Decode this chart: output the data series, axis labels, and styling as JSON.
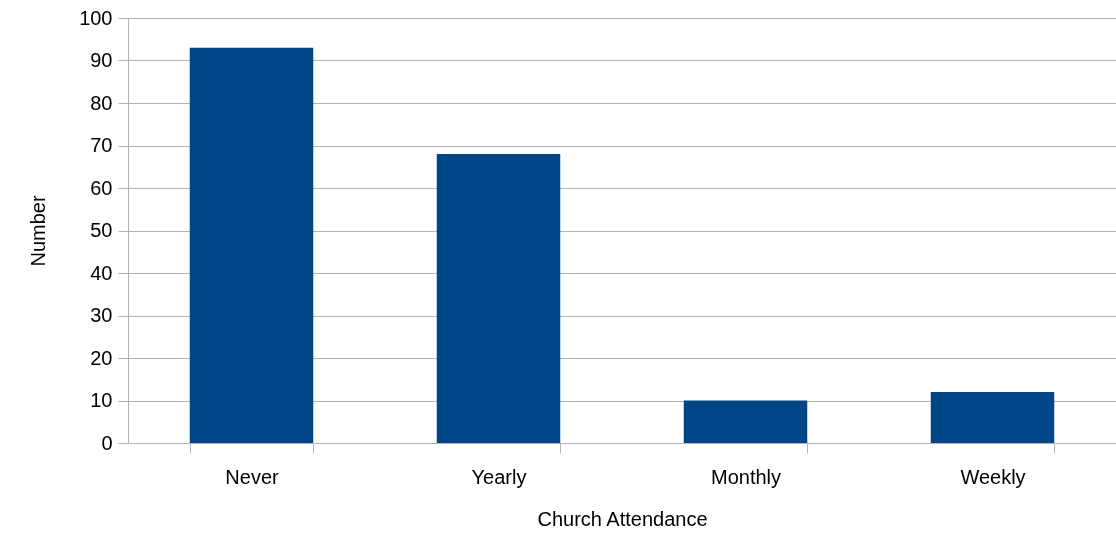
{
  "chart_data": {
    "type": "bar",
    "xlabel": "Church Attendance",
    "ylabel": "Number",
    "categories": [
      "Never",
      "Yearly",
      "Monthly",
      "Weekly"
    ],
    "values": [
      93,
      68,
      10,
      12
    ],
    "color": "#004586",
    "ylim": [
      0,
      100
    ],
    "yticks": [
      0,
      10,
      20,
      30,
      40,
      50,
      60,
      70,
      80,
      90,
      100
    ],
    "grid": "y"
  }
}
